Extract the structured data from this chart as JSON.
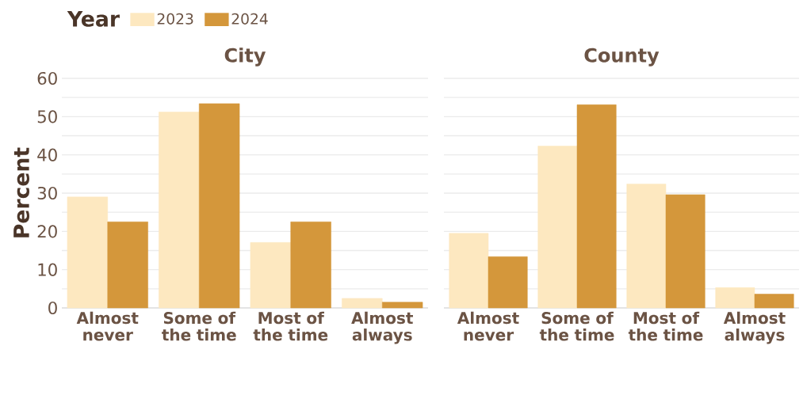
{
  "chart_data": [
    {
      "type": "bar",
      "title": "City",
      "ylabel": "Percent",
      "legend_title": "Year",
      "legend": "top",
      "grid": "y",
      "categories": [
        "Almost never",
        "Some of the time",
        "Most of the time",
        "Almost always"
      ],
      "series": [
        {
          "name": "2023",
          "color": "#fde8c0",
          "values": [
            29.0,
            51.2,
            17.1,
            2.5
          ]
        },
        {
          "name": "2024",
          "color": "#d4973b",
          "values": [
            22.5,
            53.4,
            22.5,
            1.5
          ]
        }
      ],
      "ylim": [
        0,
        60
      ],
      "yticks": [
        0,
        {
          "value": 5,
          "label": null
        },
        10,
        {
          "value": 15,
          "label": null
        },
        20,
        {
          "value": 25,
          "label": null
        },
        30,
        {
          "value": 35,
          "label": null
        },
        40,
        {
          "value": 45,
          "label": null
        },
        50,
        {
          "value": 55,
          "label": null
        },
        60
      ]
    },
    {
      "type": "bar",
      "title": "County",
      "grid": "y",
      "tick_labels": "x",
      "categories": [
        "Almost never",
        "Some of the time",
        "Most of the time",
        "Almost always"
      ],
      "series": [
        {
          "color": "#fde8c0",
          "values": [
            19.5,
            42.3,
            32.4,
            5.3
          ]
        },
        {
          "color": "#d4973b",
          "values": [
            13.4,
            53.1,
            29.6,
            3.6
          ]
        }
      ],
      "ylim": [
        0,
        60
      ],
      "yticks": [
        0,
        {
          "value": 5,
          "label": null
        },
        10,
        {
          "value": 15,
          "label": null
        },
        20,
        {
          "value": 25,
          "label": null
        },
        30,
        {
          "value": 35,
          "label": null
        },
        40,
        {
          "value": 45,
          "label": null
        },
        50,
        {
          "value": 55,
          "label": null
        },
        60
      ]
    }
  ]
}
